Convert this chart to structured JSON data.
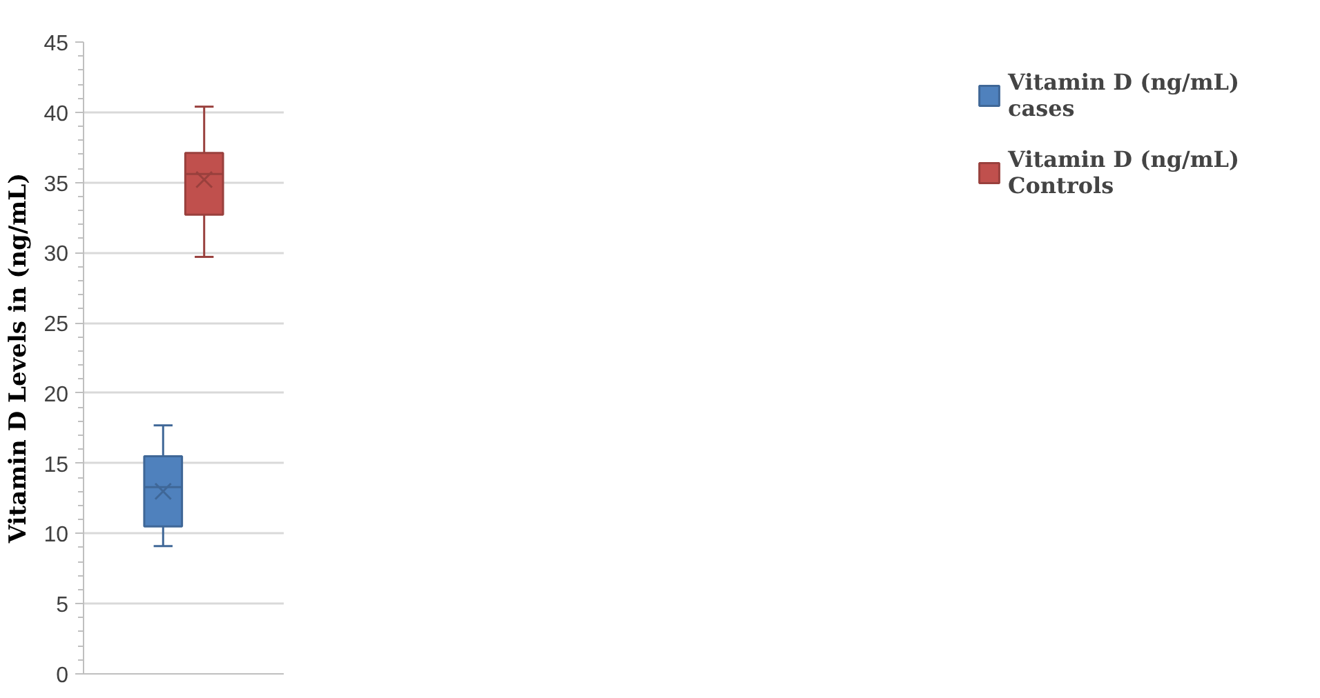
{
  "chart_data": {
    "type": "box",
    "ylabel": "Vitamin D Levels in (ng/mL)",
    "categories": [
      null
    ],
    "ylim": [
      0,
      45
    ],
    "yticks": [
      0,
      5,
      10,
      15,
      20,
      25,
      30,
      35,
      40,
      45
    ],
    "grid": "y",
    "legend": "right",
    "tick_labels": "y",
    "series": [
      {
        "name": "Vitamin D (ng/mL) cases",
        "color": "#4f81bd",
        "boxes": [
          {
            "low": 9.1,
            "q1": 10.5,
            "median": 13.3,
            "q3": 15.5,
            "high": 17.7,
            "mean": 13.0
          }
        ]
      },
      {
        "name": "Vitamin D (ng/mL) Controls",
        "color": "#c0504d",
        "boxes": [
          {
            "low": 29.7,
            "q1": 32.7,
            "median": 35.6,
            "q3": 37.1,
            "high": 40.4,
            "mean": 35.2
          }
        ]
      }
    ]
  }
}
